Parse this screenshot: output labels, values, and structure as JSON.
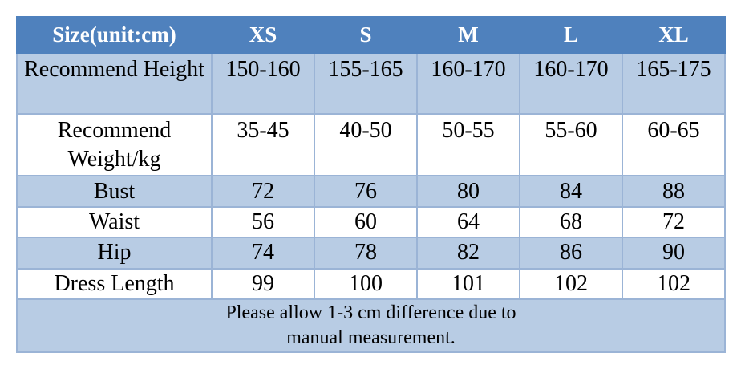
{
  "table": {
    "header": [
      "Size(unit:cm)",
      "XS",
      "S",
      "M",
      "L",
      "XL"
    ],
    "rows": [
      [
        "Recommend Height",
        "150-160",
        "155-165",
        "160-170",
        "160-170",
        "165-175"
      ],
      [
        "Recommend Weight/kg",
        "35-45",
        "40-50",
        "50-55",
        "55-60",
        "60-65"
      ],
      [
        "Bust",
        "72",
        "76",
        "80",
        "84",
        "88"
      ],
      [
        "Waist",
        "56",
        "60",
        "64",
        "68",
        "72"
      ],
      [
        "Hip",
        "74",
        "78",
        "82",
        "86",
        "90"
      ],
      [
        "Dress Length",
        "99",
        "100",
        "101",
        "102",
        "102"
      ]
    ],
    "note": [
      "Please allow 1-3 cm difference due to",
      "manual measurement."
    ]
  }
}
